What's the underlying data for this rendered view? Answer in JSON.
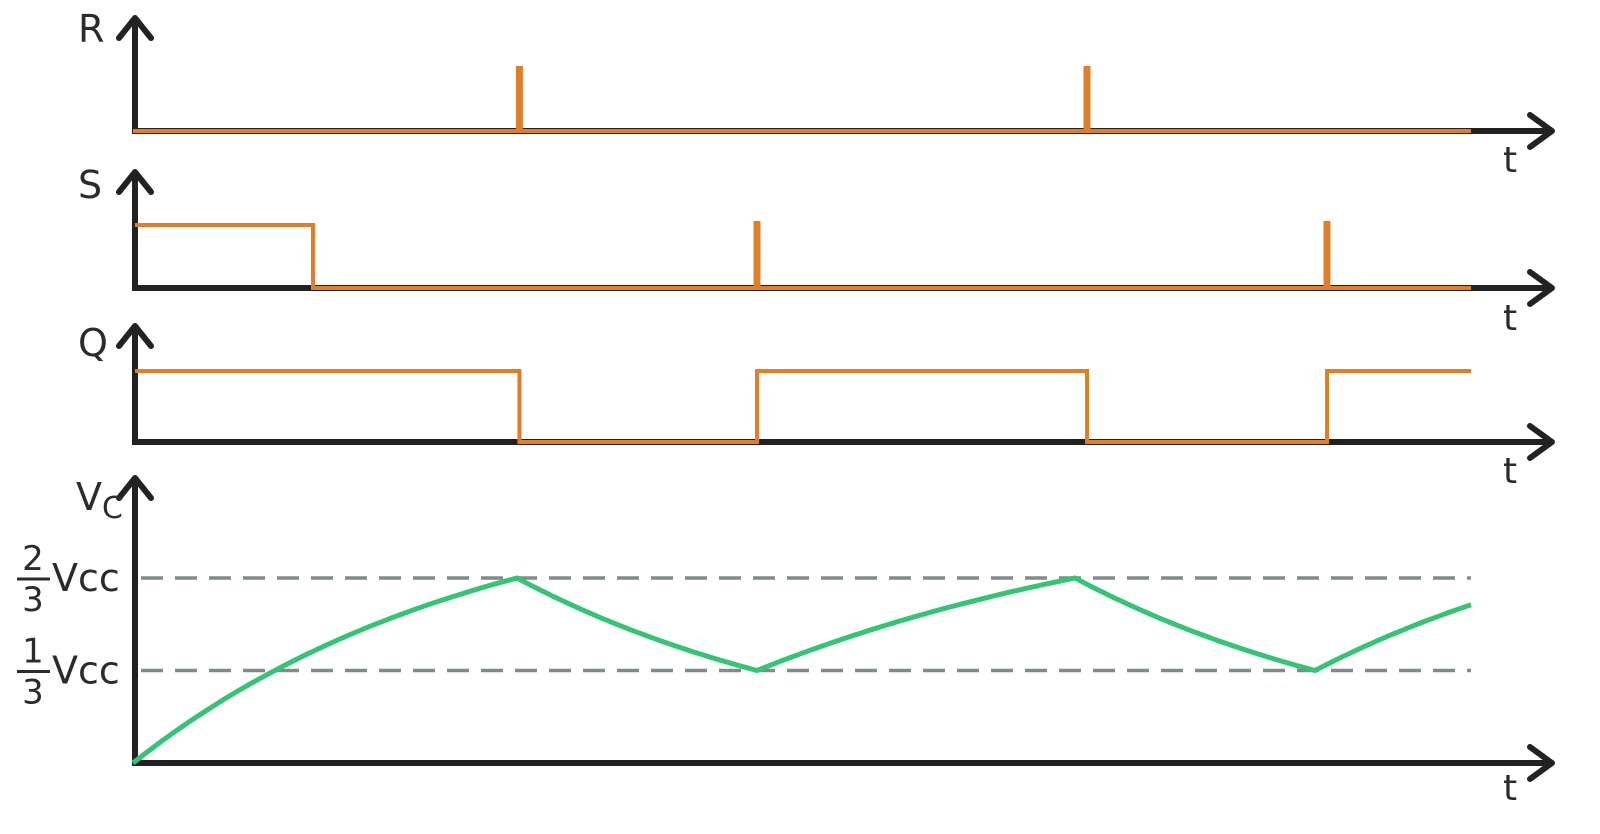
{
  "colors": {
    "axis": "#222222",
    "digital": "#e07f2a",
    "analog": "#35c476",
    "threshold": "#7f8c8a"
  },
  "time_axis_label": "t",
  "signals": [
    {
      "id": "R",
      "label": "R",
      "type": "digital",
      "pulses": [
        3.22,
        7.95
      ],
      "levels": []
    },
    {
      "id": "S",
      "label": "S",
      "type": "digital",
      "pulses": [
        5.2,
        9.95
      ],
      "levels": [
        [
          0,
          1.5,
          1
        ]
      ]
    },
    {
      "id": "Q",
      "label": "Q",
      "type": "digital",
      "pulses": [],
      "levels": [
        [
          0,
          3.22,
          1
        ],
        [
          3.22,
          5.2,
          0
        ],
        [
          5.2,
          7.95,
          1
        ],
        [
          7.95,
          9.95,
          0
        ],
        [
          9.95,
          11.15,
          1
        ]
      ]
    }
  ],
  "vc": {
    "label_main": "V",
    "label_sub": "C",
    "thresholds": [
      {
        "num": "2",
        "den": "3",
        "unit": "Vcc",
        "value": 0.6667
      },
      {
        "num": "1",
        "den": "3",
        "unit": "Vcc",
        "value": 0.3333
      }
    ],
    "points": [
      [
        0,
        0
      ],
      [
        3.2,
        0.6667
      ],
      [
        5.2,
        0.3333
      ],
      [
        7.85,
        0.6667
      ],
      [
        9.85,
        0.3333
      ],
      [
        11.15,
        0.57
      ]
    ]
  },
  "t_end": 11.15
}
